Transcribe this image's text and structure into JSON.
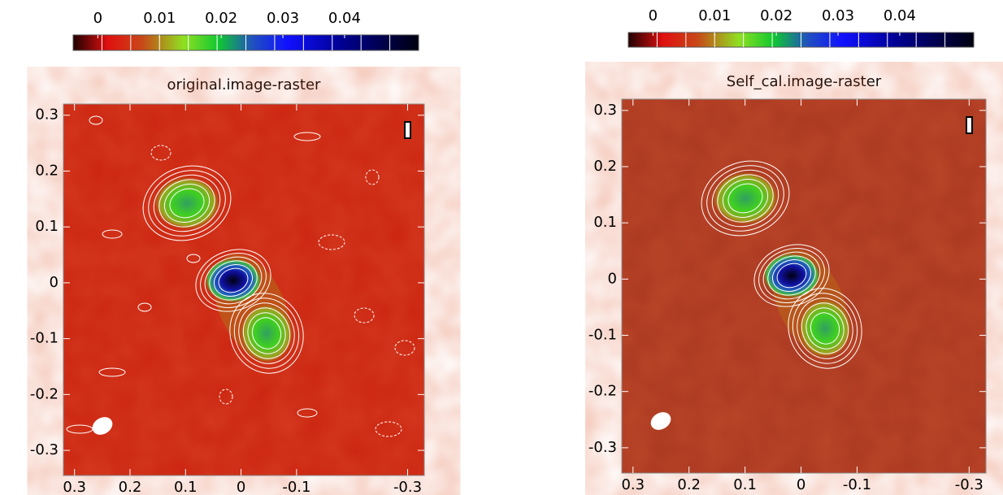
{
  "chart_data": [
    {
      "type": "image",
      "title": "original.image-raster",
      "colorbar_lim": [
        -0.004,
        0.052
      ],
      "colorbar_ticks": [
        0,
        0.01,
        0.02,
        0.03,
        0.04
      ],
      "xlim": [
        0.32,
        -0.33
      ],
      "xticks": [
        0.3,
        0.2,
        0.1,
        0,
        -0.1,
        -0.3
      ],
      "ylim": [
        -0.345,
        0.32
      ],
      "yticks": [
        0.3,
        0.2,
        0.1,
        0,
        -0.1,
        -0.2,
        -0.3
      ]
    },
    {
      "type": "image",
      "title": "Self_cal.image-raster",
      "colorbar_lim": [
        -0.004,
        0.052
      ],
      "colorbar_ticks": [
        0,
        0.01,
        0.02,
        0.03,
        0.04
      ],
      "xlim": [
        0.32,
        -0.33
      ],
      "xticks": [
        0.3,
        0.2,
        0.1,
        0,
        -0.1,
        -0.3
      ],
      "ylim": [
        -0.345,
        0.32
      ],
      "yticks": [
        0.3,
        0.2,
        0.1,
        0,
        -0.1,
        -0.2,
        -0.3
      ]
    }
  ]
}
